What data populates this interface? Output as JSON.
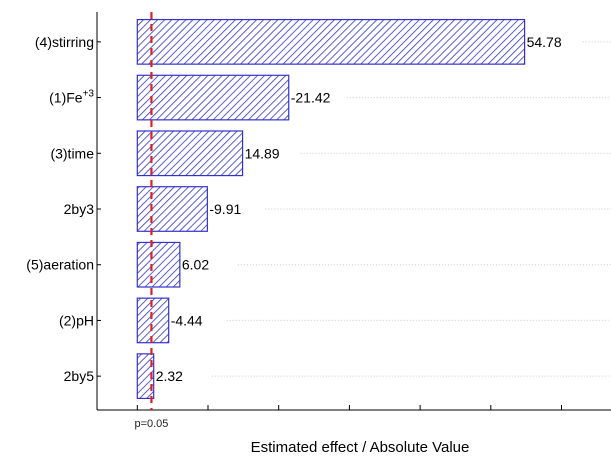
{
  "chart_data": {
    "type": "bar",
    "orientation": "horizontal",
    "title": "",
    "xlabel": "Estimated effect / Absolute Value",
    "ylabel": "",
    "categories": [
      "(4)stirring",
      "(1)Fe+3",
      "(3)time",
      "2by3",
      "(5)aeration",
      "(2)pH",
      "2by5"
    ],
    "values": [
      54.78,
      21.42,
      14.89,
      9.91,
      6.02,
      4.44,
      2.32
    ],
    "value_labels": [
      "54.78",
      "-21.42",
      "14.89",
      "-9.91",
      "6.02",
      "-4.44",
      "2.32"
    ],
    "xlim": [
      -5.7,
      67
    ],
    "grid": true,
    "reference_line": {
      "value": 2.0,
      "label": "p=0.05",
      "color": "#e02020",
      "style": "dashed"
    },
    "bar_color": "#3333cc",
    "bar_fill": "hatched"
  }
}
